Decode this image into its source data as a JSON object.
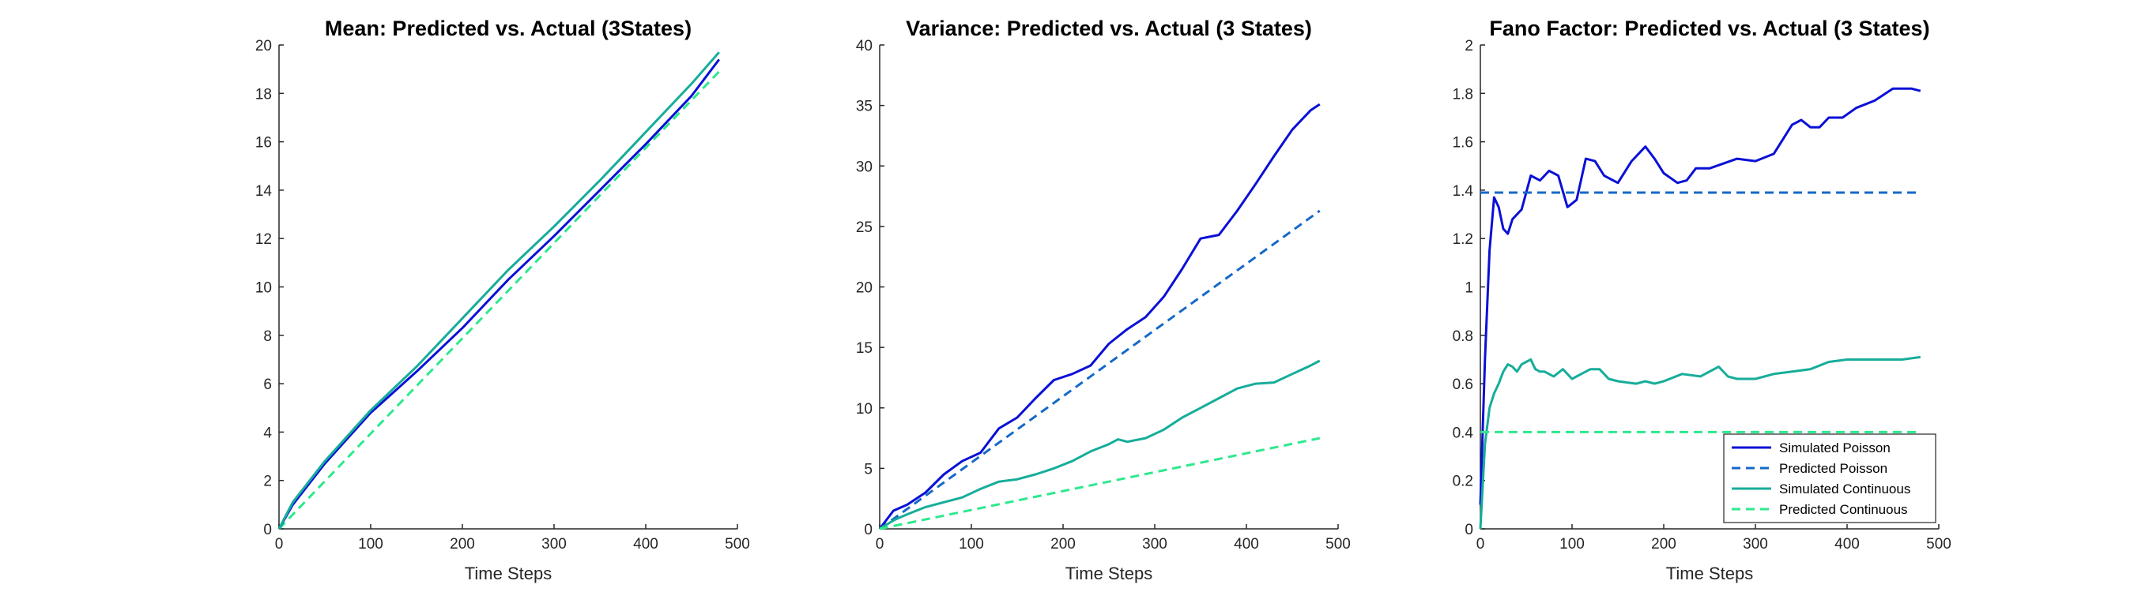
{
  "figure": {
    "colors": {
      "simulated_poisson": "#0a10d6",
      "predicted_poisson": "#1569c8",
      "simulated_continuous": "#16ad9a",
      "predicted_continuous": "#2ee88d"
    }
  },
  "chart_data": [
    {
      "type": "line",
      "title": "Mean: Predicted vs. Actual (3States)",
      "xlabel": "Time Steps",
      "ylabel": "",
      "xlim": [
        0,
        500
      ],
      "ylim": [
        0,
        20
      ],
      "xticks": [
        0,
        100,
        200,
        300,
        400,
        500
      ],
      "yticks": [
        0,
        2,
        4,
        6,
        8,
        10,
        12,
        14,
        16,
        18,
        20
      ],
      "legend": null,
      "series": [
        {
          "key": "predicted_continuous",
          "style": "dashed",
          "x": [
            0,
            480
          ],
          "y": [
            0,
            18.9
          ]
        },
        {
          "key": "simulated_poisson",
          "style": "solid",
          "x": [
            0,
            15,
            50,
            100,
            150,
            200,
            250,
            300,
            350,
            400,
            450,
            480
          ],
          "y": [
            0,
            1.0,
            2.7,
            4.8,
            6.5,
            8.3,
            10.3,
            12.1,
            14.0,
            15.9,
            17.9,
            19.4
          ]
        },
        {
          "key": "simulated_continuous",
          "style": "solid",
          "x": [
            0,
            15,
            50,
            100,
            150,
            200,
            250,
            300,
            350,
            400,
            450,
            480
          ],
          "y": [
            0,
            1.1,
            2.8,
            4.9,
            6.7,
            8.7,
            10.7,
            12.5,
            14.4,
            16.4,
            18.4,
            19.7
          ]
        }
      ]
    },
    {
      "type": "line",
      "title": "Variance: Predicted vs. Actual (3 States)",
      "xlabel": "Time Steps",
      "ylabel": "",
      "xlim": [
        0,
        500
      ],
      "ylim": [
        0,
        40
      ],
      "xticks": [
        0,
        100,
        200,
        300,
        400,
        500
      ],
      "yticks": [
        0,
        5,
        10,
        15,
        20,
        25,
        30,
        35,
        40
      ],
      "legend": null,
      "series": [
        {
          "key": "simulated_poisson",
          "style": "solid",
          "x": [
            0,
            15,
            30,
            50,
            70,
            90,
            110,
            130,
            150,
            170,
            190,
            210,
            230,
            250,
            270,
            290,
            310,
            330,
            350,
            370,
            390,
            410,
            430,
            450,
            470,
            480
          ],
          "y": [
            0,
            1.5,
            2.0,
            3.0,
            4.5,
            5.6,
            6.3,
            8.3,
            9.2,
            10.8,
            12.3,
            12.8,
            13.5,
            15.3,
            16.5,
            17.5,
            19.2,
            21.5,
            24.0,
            24.3,
            26.3,
            28.5,
            30.8,
            33.0,
            34.6,
            35.1
          ]
        },
        {
          "key": "predicted_poisson",
          "style": "dashed",
          "x": [
            0,
            480
          ],
          "y": [
            0,
            26.3
          ]
        },
        {
          "key": "simulated_continuous",
          "style": "solid",
          "x": [
            0,
            15,
            30,
            50,
            70,
            90,
            110,
            130,
            150,
            170,
            190,
            210,
            230,
            250,
            260,
            270,
            290,
            310,
            330,
            350,
            370,
            390,
            410,
            430,
            450,
            470,
            480
          ],
          "y": [
            0,
            0.7,
            1.2,
            1.8,
            2.2,
            2.6,
            3.3,
            3.9,
            4.1,
            4.5,
            5.0,
            5.6,
            6.4,
            7.0,
            7.4,
            7.2,
            7.5,
            8.2,
            9.2,
            10.0,
            10.8,
            11.6,
            12.0,
            12.1,
            12.8,
            13.5,
            13.9
          ]
        },
        {
          "key": "predicted_continuous",
          "style": "dashed",
          "x": [
            0,
            480
          ],
          "y": [
            0,
            7.5
          ]
        }
      ]
    },
    {
      "type": "line",
      "title": "Fano Factor: Predicted vs. Actual (3 States)",
      "xlabel": "Time Steps",
      "ylabel": "",
      "xlim": [
        0,
        500
      ],
      "ylim": [
        0,
        2
      ],
      "xticks": [
        0,
        100,
        200,
        300,
        400,
        500
      ],
      "yticks": [
        0,
        0.2,
        0.4,
        0.6,
        0.8,
        1,
        1.2,
        1.4,
        1.6,
        1.8,
        2
      ],
      "legend": {
        "placement": "bottom-right",
        "entries": [
          "Simulated Poisson",
          "Predicted Poisson",
          "Simulated Continuous",
          "Predicted Continuous"
        ]
      },
      "series": [
        {
          "key": "simulated_poisson",
          "name": "Simulated Poisson",
          "style": "solid",
          "x": [
            0,
            5,
            10,
            15,
            20,
            25,
            30,
            35,
            45,
            55,
            65,
            75,
            85,
            95,
            105,
            115,
            125,
            135,
            150,
            165,
            180,
            190,
            200,
            215,
            225,
            235,
            250,
            265,
            280,
            300,
            320,
            340,
            350,
            360,
            370,
            380,
            395,
            410,
            430,
            450,
            460,
            470,
            480
          ],
          "y": [
            0.1,
            0.7,
            1.15,
            1.37,
            1.33,
            1.24,
            1.22,
            1.28,
            1.32,
            1.46,
            1.44,
            1.48,
            1.46,
            1.33,
            1.36,
            1.53,
            1.52,
            1.46,
            1.43,
            1.52,
            1.58,
            1.53,
            1.47,
            1.43,
            1.44,
            1.49,
            1.49,
            1.51,
            1.53,
            1.52,
            1.55,
            1.67,
            1.69,
            1.66,
            1.66,
            1.7,
            1.7,
            1.74,
            1.77,
            1.82,
            1.82,
            1.82,
            1.81
          ]
        },
        {
          "key": "predicted_poisson",
          "name": "Predicted Poisson",
          "style": "dashed",
          "x": [
            0,
            480
          ],
          "y": [
            1.39,
            1.39
          ]
        },
        {
          "key": "simulated_continuous",
          "name": "Simulated Continuous",
          "style": "solid",
          "x": [
            0,
            5,
            10,
            15,
            20,
            25,
            30,
            35,
            40,
            45,
            50,
            55,
            60,
            65,
            70,
            80,
            90,
            100,
            110,
            120,
            130,
            140,
            150,
            170,
            180,
            190,
            200,
            220,
            240,
            260,
            270,
            280,
            300,
            320,
            340,
            360,
            380,
            400,
            420,
            440,
            460,
            480
          ],
          "y": [
            0.0,
            0.35,
            0.5,
            0.56,
            0.6,
            0.65,
            0.68,
            0.67,
            0.65,
            0.68,
            0.69,
            0.7,
            0.66,
            0.65,
            0.65,
            0.63,
            0.66,
            0.62,
            0.64,
            0.66,
            0.66,
            0.62,
            0.61,
            0.6,
            0.61,
            0.6,
            0.61,
            0.64,
            0.63,
            0.67,
            0.63,
            0.62,
            0.62,
            0.64,
            0.65,
            0.66,
            0.69,
            0.7,
            0.7,
            0.7,
            0.7,
            0.71
          ]
        },
        {
          "key": "predicted_continuous",
          "name": "Predicted Continuous",
          "style": "dashed",
          "x": [
            0,
            480
          ],
          "y": [
            0.4,
            0.4
          ]
        }
      ]
    }
  ]
}
